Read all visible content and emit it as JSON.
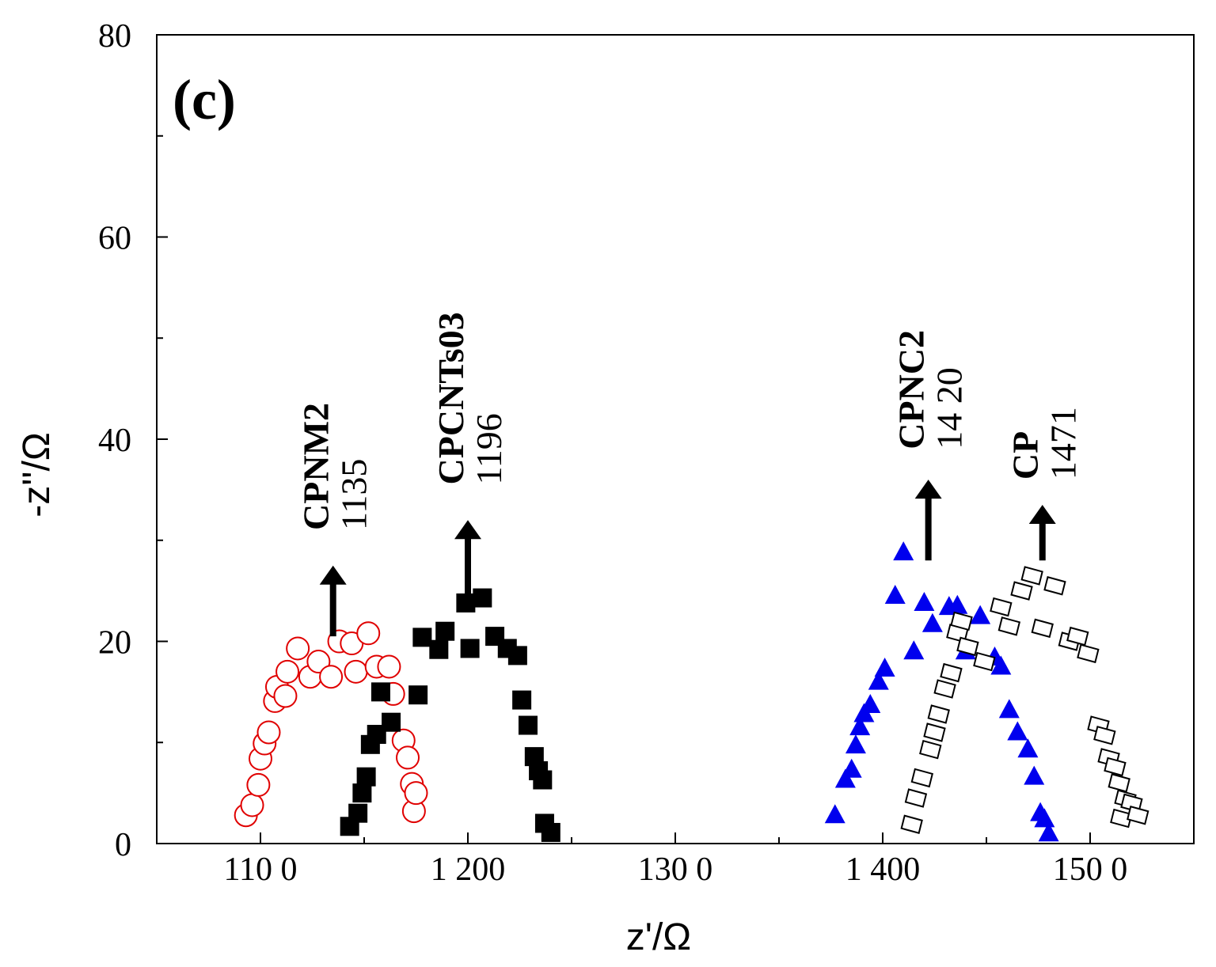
{
  "chart_data": {
    "type": "scatter",
    "panel_label": "(c)",
    "xlabel": "z'/Ω",
    "ylabel": "-z''/Ω",
    "xlim": [
      1050,
      1550
    ],
    "ylim": [
      0,
      80
    ],
    "x_ticks": [
      1100,
      1200,
      1300,
      1400,
      1500
    ],
    "x_tick_labels": [
      "110 0",
      "1 200",
      "130 0",
      "1 400",
      "150 0"
    ],
    "y_ticks": [
      0,
      20,
      40,
      60,
      80
    ],
    "y_tick_labels": [
      "0",
      "20",
      "40",
      "60",
      "80"
    ],
    "x_minor_ticks": [
      1150,
      1250,
      1350,
      1450
    ],
    "y_minor_ticks": [
      10,
      30,
      50,
      70
    ],
    "grid": false,
    "series": [
      {
        "name": "CPNM2",
        "marker": "circle-open",
        "color": "#e00000",
        "points": [
          [
            1093,
            2.8
          ],
          [
            1096,
            3.8
          ],
          [
            1099,
            5.8
          ],
          [
            1100,
            8.4
          ],
          [
            1102,
            9.9
          ],
          [
            1104,
            11.0
          ],
          [
            1107,
            14.1
          ],
          [
            1108,
            15.5
          ],
          [
            1112,
            14.6
          ],
          [
            1113,
            17.0
          ],
          [
            1118,
            19.3
          ],
          [
            1124,
            16.5
          ],
          [
            1128,
            18.0
          ],
          [
            1134,
            16.5
          ],
          [
            1138,
            20.0
          ],
          [
            1144,
            19.8
          ],
          [
            1146,
            17.0
          ],
          [
            1152,
            20.8
          ],
          [
            1156,
            17.5
          ],
          [
            1162,
            17.5
          ],
          [
            1164,
            14.8
          ],
          [
            1169,
            10.2
          ],
          [
            1171,
            8.5
          ],
          [
            1173,
            5.9
          ],
          [
            1174,
            3.2
          ],
          [
            1175,
            5.0
          ]
        ]
      },
      {
        "name": "CPCNTs03",
        "marker": "square-filled",
        "color": "#000000",
        "points": [
          [
            1143,
            1.7
          ],
          [
            1147,
            3.0
          ],
          [
            1149,
            5.0
          ],
          [
            1151,
            6.6
          ],
          [
            1153,
            9.8
          ],
          [
            1156,
            10.8
          ],
          [
            1158,
            15.0
          ],
          [
            1163,
            12.0
          ],
          [
            1176,
            14.7
          ],
          [
            1178,
            20.4
          ],
          [
            1186,
            19.2
          ],
          [
            1189,
            21.0
          ],
          [
            1199,
            23.8
          ],
          [
            1201,
            19.3
          ],
          [
            1207,
            24.3
          ],
          [
            1213,
            20.5
          ],
          [
            1219,
            19.3
          ],
          [
            1224,
            18.6
          ],
          [
            1226,
            14.2
          ],
          [
            1229,
            11.7
          ],
          [
            1232,
            8.6
          ],
          [
            1234,
            7.2
          ],
          [
            1236,
            6.3
          ],
          [
            1237,
            2.0
          ],
          [
            1240,
            1.1
          ]
        ]
      },
      {
        "name": "CPNC2",
        "marker": "triangle-filled",
        "color": "#0000ee",
        "points": [
          [
            1377,
            2.8
          ],
          [
            1382,
            6.3
          ],
          [
            1385,
            7.3
          ],
          [
            1387,
            9.7
          ],
          [
            1389,
            11.5
          ],
          [
            1391,
            12.8
          ],
          [
            1394,
            13.7
          ],
          [
            1398,
            16.0
          ],
          [
            1401,
            17.3
          ],
          [
            1406,
            24.5
          ],
          [
            1410,
            28.8
          ],
          [
            1415,
            19.0
          ],
          [
            1420,
            23.8
          ],
          [
            1424,
            21.7
          ],
          [
            1432,
            23.4
          ],
          [
            1436,
            23.5
          ],
          [
            1440,
            19.0
          ],
          [
            1447,
            22.5
          ],
          [
            1454,
            18.4
          ],
          [
            1457,
            17.5
          ],
          [
            1461,
            13.2
          ],
          [
            1465,
            11.0
          ],
          [
            1470,
            9.3
          ],
          [
            1473,
            6.6
          ],
          [
            1476,
            3.0
          ],
          [
            1478,
            2.4
          ],
          [
            1480,
            1.0
          ]
        ]
      },
      {
        "name": "CP",
        "marker": "diamond-open",
        "color": "#000000",
        "points": [
          [
            1414,
            1.9
          ],
          [
            1416,
            4.5
          ],
          [
            1419,
            6.5
          ],
          [
            1423,
            9.3
          ],
          [
            1425,
            11.0
          ],
          [
            1427,
            12.8
          ],
          [
            1430,
            15.3
          ],
          [
            1433,
            16.9
          ],
          [
            1436,
            20.8
          ],
          [
            1438,
            22.0
          ],
          [
            1441,
            19.5
          ],
          [
            1449,
            18.0
          ],
          [
            1457,
            23.4
          ],
          [
            1461,
            21.5
          ],
          [
            1467,
            25.0
          ],
          [
            1472,
            26.5
          ],
          [
            1477,
            21.3
          ],
          [
            1483,
            25.5
          ],
          [
            1490,
            20.0
          ],
          [
            1494,
            20.5
          ],
          [
            1499,
            18.8
          ],
          [
            1504,
            11.7
          ],
          [
            1507,
            10.7
          ],
          [
            1509,
            8.5
          ],
          [
            1512,
            7.6
          ],
          [
            1514,
            6.0
          ],
          [
            1515,
            2.5
          ],
          [
            1517,
            4.4
          ],
          [
            1520,
            4.0
          ],
          [
            1523,
            2.8
          ]
        ]
      }
    ],
    "annotations": [
      {
        "name": "CPNM2",
        "value": "1135",
        "arrow_x": 1135,
        "arrow_y_start": 20.5,
        "arrow_y_end": 27.5,
        "text_y": 31.0
      },
      {
        "name": "CPCNTs03",
        "value": "1196",
        "arrow_x": 1200,
        "arrow_y_start": 23.0,
        "arrow_y_end": 32.0,
        "text_y": 35.5
      },
      {
        "name": "CPNC2",
        "value": "14 20",
        "arrow_x": 1422,
        "arrow_y_start": 28.0,
        "arrow_y_end": 36.0,
        "text_y": 39.0
      },
      {
        "name": "CP",
        "value": "1471",
        "arrow_x": 1477,
        "arrow_y_start": 28.0,
        "arrow_y_end": 33.5,
        "text_y": 36.0
      }
    ]
  }
}
